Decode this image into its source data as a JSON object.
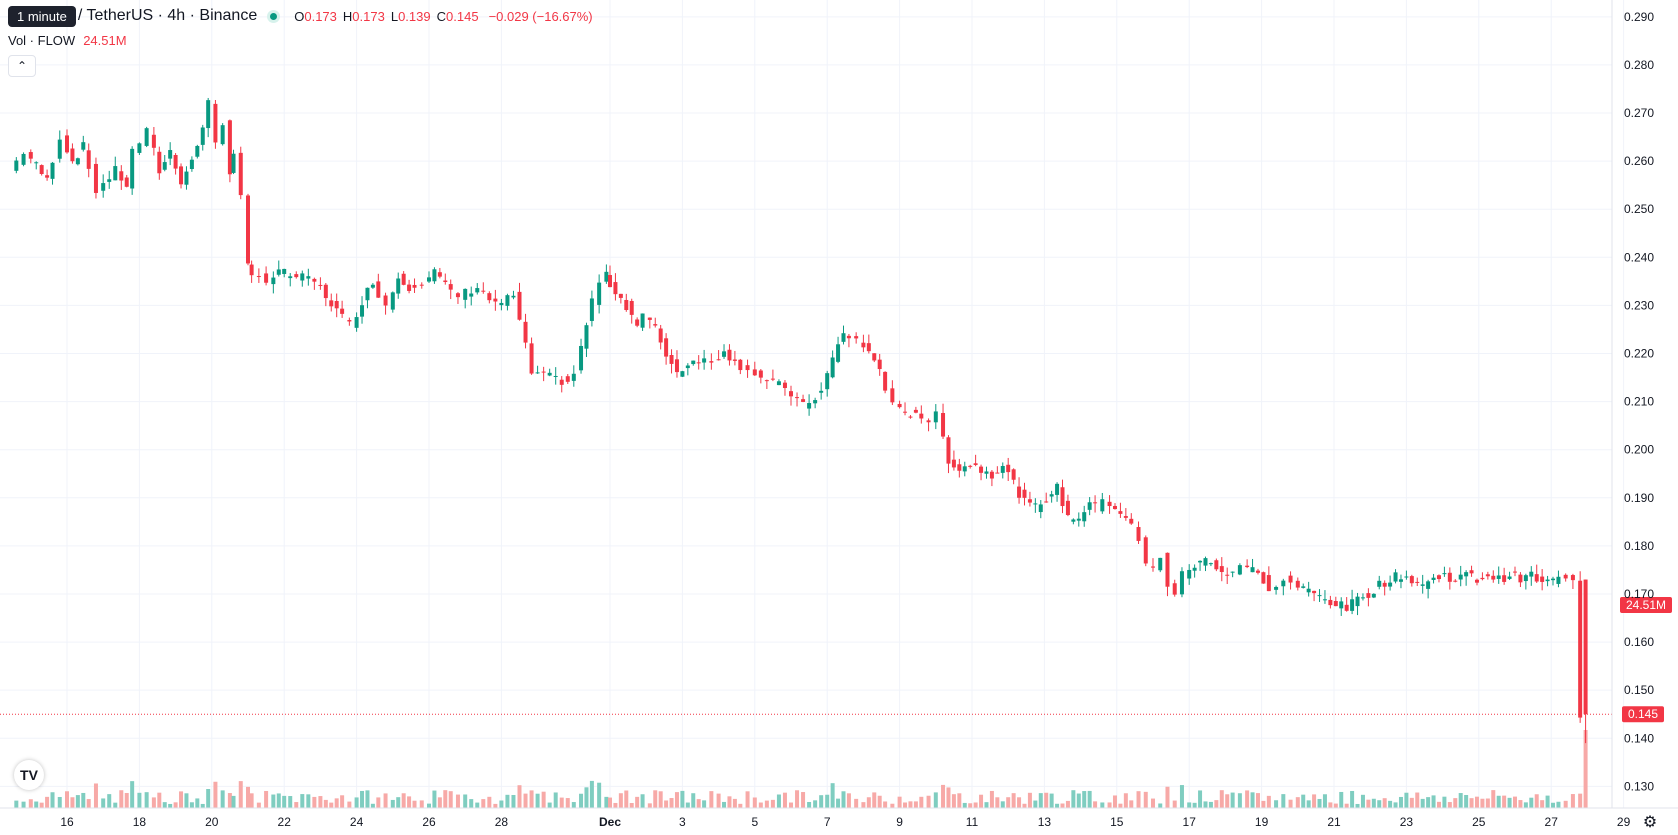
{
  "header": {
    "interval_tooltip": "1 minute",
    "symbol_title": "/ TetherUS · 4h · Binance",
    "ohlc": {
      "o_label": "O",
      "o_value": "0.173",
      "h_label": "H",
      "h_value": "0.173",
      "l_label": "L",
      "l_value": "0.139",
      "c_label": "C",
      "c_value": "0.145",
      "change": "−0.029 (−16.67%)"
    },
    "volume_label": "Vol · FLOW",
    "volume_value": "24.51M"
  },
  "colors": {
    "up": "#089981",
    "down": "#f23645",
    "up_volume": "#7fcdc0",
    "down_volume": "#f7a9a7",
    "grid": "#f0f3fa",
    "price_line": "#f23645"
  },
  "icons": {
    "logo": "tradingview-logo-icon",
    "settings": "gear-icon",
    "collapse": "chevron-up-icon"
  },
  "chart_data": {
    "type": "candlestick",
    "y_axis": {
      "ticks": [
        "0.290",
        "0.280",
        "0.270",
        "0.260",
        "0.250",
        "0.240",
        "0.230",
        "0.220",
        "0.210",
        "0.200",
        "0.190",
        "0.180",
        "0.170",
        "0.160",
        "0.150",
        "0.140",
        "0.130"
      ],
      "ylim": [
        0.1255,
        0.2935
      ]
    },
    "x_axis": {
      "ticks": [
        "16",
        "18",
        "20",
        "22",
        "24",
        "26",
        "28",
        "Dec",
        "3",
        "5",
        "7",
        "9",
        "11",
        "13",
        "15",
        "17",
        "19",
        "21",
        "23",
        "25",
        "27",
        "29"
      ],
      "bold_ticks": [
        "Dec"
      ]
    },
    "current_price": "0.145",
    "volume_label_badge": "24.51M",
    "bars_per_day": 6,
    "series": [
      {
        "day": [
          14.6,
          15.0,
          15.6,
          16.0,
          16.3,
          16.6,
          17.0,
          17.5,
          17.8,
          18.0,
          18.4,
          18.7,
          19.0,
          19.3,
          19.6,
          19.9,
          20.1,
          20.3,
          20.5,
          20.6,
          20.8,
          21.0,
          21.1,
          21.3,
          21.5,
          21.7,
          22.0,
          22.5,
          23.0,
          23.3,
          23.6,
          24.0,
          24.3,
          24.6,
          25.0,
          25.3,
          25.6,
          26.0,
          26.3,
          26.6,
          27.0,
          27.5,
          28.0,
          28.5,
          29.0,
          29.5,
          30.0,
          30.2,
          30.5,
          30.7,
          30.9,
          31.0,
          31.3,
          31.6,
          31.9,
          32.1,
          32.4,
          32.7,
          33.0,
          33.3,
          33.6,
          34.0,
          34.3,
          34.6,
          35.0,
          35.5,
          36.0,
          36.5,
          37.0,
          37.3,
          37.6,
          38.0,
          38.3,
          38.6,
          39.0,
          39.3,
          39.6,
          40.0,
          40.2,
          40.5,
          40.8,
          41.1,
          41.4,
          41.7,
          42.0,
          42.3,
          42.6,
          42.9,
          43.2,
          43.5,
          43.8,
          44.1,
          44.4,
          44.6,
          44.8,
          45.1,
          45.4,
          45.6,
          45.8,
          46.0,
          46.2,
          46.4,
          46.6,
          46.8,
          47.0,
          47.3,
          47.6,
          47.9,
          48.2,
          48.4,
          48.6,
          48.9,
          49.2,
          49.4,
          49.6,
          49.8,
          50.0,
          50.3,
          50.6,
          50.9,
          51.2,
          51.5,
          51.8,
          52.1,
          52.4,
          52.7,
          53.0,
          53.3,
          53.6,
          53.9,
          54.2,
          54.5,
          54.8,
          55.1,
          55.4,
          55.7,
          56.0,
          56.3,
          56.6,
          56.9,
          57.2,
          57.4,
          57.6,
          57.8,
          57.9
        ],
        "price": [
          0.258,
          0.262,
          0.256,
          0.265,
          0.26,
          0.263,
          0.254,
          0.258,
          0.255,
          0.262,
          0.266,
          0.258,
          0.262,
          0.256,
          0.26,
          0.267,
          0.272,
          0.264,
          0.268,
          0.258,
          0.261,
          0.252,
          0.238,
          0.236,
          0.237,
          0.235,
          0.237,
          0.236,
          0.235,
          0.232,
          0.229,
          0.226,
          0.231,
          0.235,
          0.23,
          0.236,
          0.234,
          0.235,
          0.237,
          0.234,
          0.232,
          0.234,
          0.23,
          0.232,
          0.216,
          0.215,
          0.214,
          0.216,
          0.226,
          0.231,
          0.235,
          0.236,
          0.233,
          0.23,
          0.226,
          0.228,
          0.225,
          0.22,
          0.216,
          0.218,
          0.219,
          0.218,
          0.221,
          0.218,
          0.217,
          0.214,
          0.213,
          0.209,
          0.212,
          0.219,
          0.224,
          0.223,
          0.22,
          0.217,
          0.209,
          0.207,
          0.208,
          0.206,
          0.207,
          0.198,
          0.196,
          0.197,
          0.196,
          0.195,
          0.197,
          0.193,
          0.189,
          0.188,
          0.19,
          0.192,
          0.186,
          0.186,
          0.189,
          0.188,
          0.19,
          0.188,
          0.186,
          0.184,
          0.181,
          0.176,
          0.175,
          0.178,
          0.172,
          0.17,
          0.174,
          0.176,
          0.177,
          0.176,
          0.174,
          0.175,
          0.176,
          0.175,
          0.173,
          0.17,
          0.172,
          0.173,
          0.172,
          0.171,
          0.17,
          0.169,
          0.168,
          0.167,
          0.169,
          0.17,
          0.172,
          0.173,
          0.174,
          0.173,
          0.172,
          0.173,
          0.174,
          0.173,
          0.174,
          0.173,
          0.174,
          0.173,
          0.174,
          0.173,
          0.174,
          0.172,
          0.173,
          0.173,
          0.174,
          0.173,
          0.145
        ]
      }
    ]
  }
}
